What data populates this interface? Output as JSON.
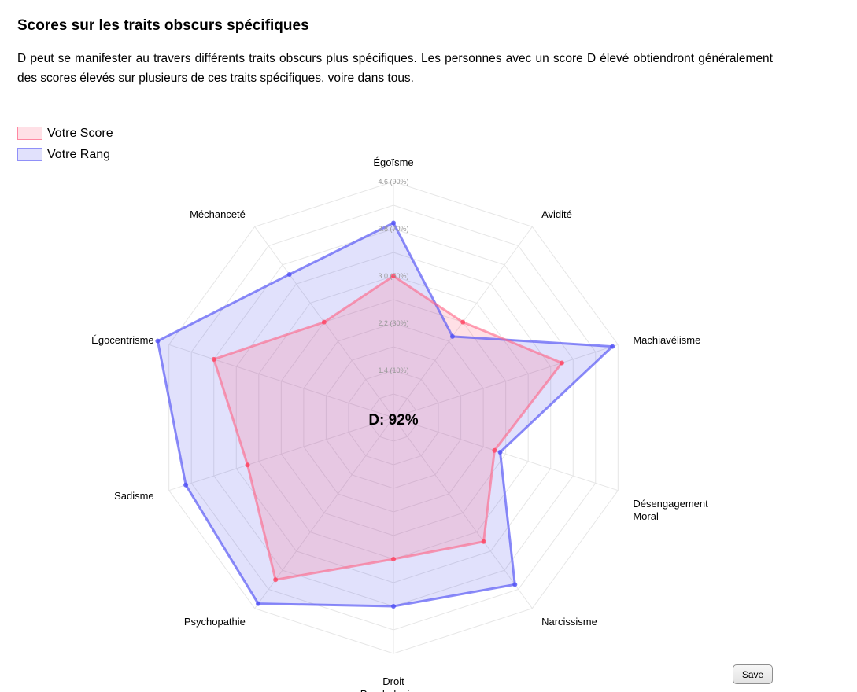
{
  "page": {
    "title": "Scores sur les traits obscurs spécifiques",
    "description": "D peut se manifester au travers différents traits obscurs plus spécifiques. Les personnes avec un score D élevé obtiendront généralement des scores élevés sur plusieurs de ces traits spécifiques, voire dans tous.",
    "save_label": "Save"
  },
  "chart_data": {
    "type": "radar",
    "center_label": "D: 92%",
    "categories": [
      "Égoïsme",
      "Avidité",
      "Machiavélisme",
      "Désengagement Moral",
      "Narcissisme",
      "Droit Psychologique",
      "Psychopathie",
      "Sadisme",
      "Égocentrisme",
      "Méchanceté"
    ],
    "series": [
      {
        "name": "Votre Score",
        "values": [
          3.0,
          2.6,
          3.6,
          2.4,
          3.2,
          3.0,
          4.0,
          3.2,
          3.8,
          2.6
        ],
        "color": "#ff6384"
      },
      {
        "name": "Votre Rang",
        "values": [
          3.9,
          2.3,
          4.5,
          2.5,
          4.1,
          3.8,
          4.5,
          4.3,
          4.8,
          3.6
        ],
        "color": "#5a5af5"
      }
    ],
    "rlim": [
      0.6,
      4.6
    ],
    "tick_labels": [
      "1.4  (10%)",
      "2.2  (30%)",
      "3.0  (50%)",
      "3.8  (70%)",
      "4.6  (90%)"
    ],
    "legend_position": "top-left",
    "grid": true
  }
}
